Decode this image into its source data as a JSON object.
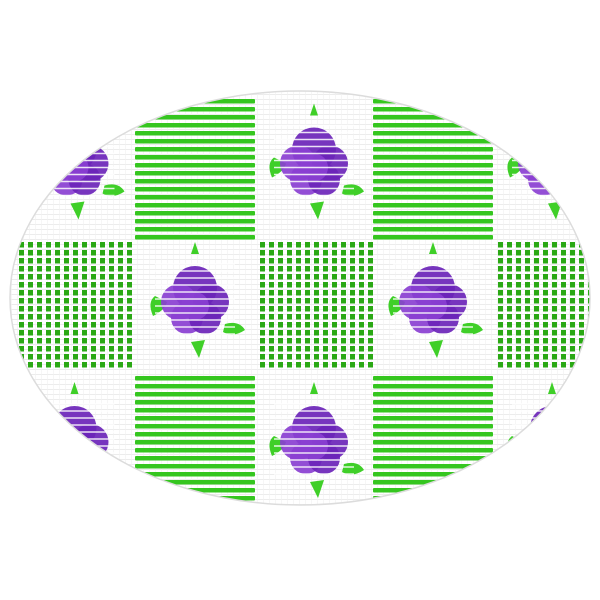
{
  "product": {
    "name": "",
    "colors": {
      "background": "#ffffff",
      "mat": "#ffffff",
      "stripe": "#35c61f",
      "stripe_dark": "#2aa814",
      "rose": "#8a3fd1",
      "rose_dark": "#6b24b8",
      "leaf": "#3fcf28",
      "mesh": "#e6e6e6"
    },
    "pattern": {
      "columns": 5,
      "rows": 3,
      "tiles": [
        "rose",
        "horizontal",
        "rose",
        "horizontal",
        "rose",
        "vertical",
        "rose",
        "vertical",
        "rose",
        "vertical",
        "rose",
        "horizontal",
        "rose",
        "horizontal",
        "rose"
      ]
    }
  }
}
